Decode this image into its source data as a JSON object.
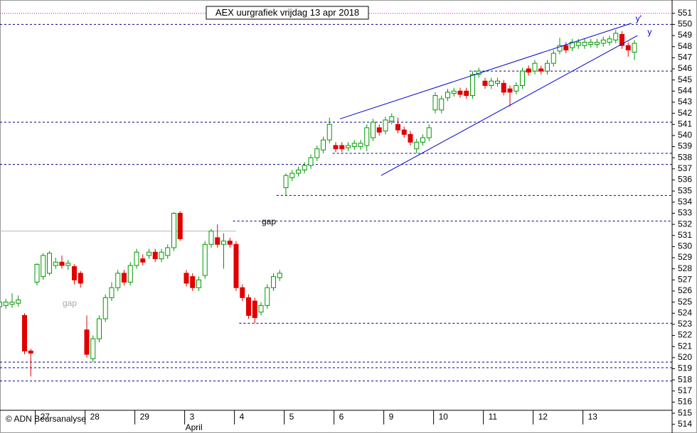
{
  "chart_data": {
    "type": "candlestick",
    "title": "AEX uurgrafiek vrijdag 13 apr 2018",
    "credit": "© ADN Beursanalyse",
    "categories": [
      null,
      null,
      null,
      null,
      null,
      null,
      "27",
      null,
      null,
      null,
      null,
      null,
      null,
      null,
      "28",
      null,
      null,
      null,
      null,
      null,
      null,
      null,
      "29",
      null,
      null,
      null,
      null,
      null,
      null,
      null,
      "3",
      null,
      null,
      null,
      null,
      null,
      null,
      null,
      "4",
      null,
      null,
      null,
      null,
      null,
      null,
      null,
      "5",
      null,
      null,
      null,
      null,
      null,
      null,
      null,
      "6",
      null,
      null,
      null,
      null,
      null,
      null,
      null,
      "9",
      null,
      null,
      null,
      null,
      null,
      null,
      null,
      "10",
      null,
      null,
      null,
      null,
      null,
      null,
      null,
      "11",
      null,
      null,
      null,
      null,
      null,
      null,
      null,
      "12",
      null,
      null,
      null,
      null,
      null,
      null,
      null,
      "13",
      null,
      null,
      null,
      null,
      null,
      null,
      null,
      null
    ],
    "month_label": {
      "index": 30,
      "label": "April"
    },
    "open": [
      524.6,
      524.7,
      524.8,
      524.9,
      523.8,
      520.6,
      526.8,
      527.3,
      527.6,
      528.3,
      528.6,
      528.3,
      528.2,
      527.6,
      522.5,
      519.9,
      521.7,
      523.5,
      525.4,
      526.3,
      527.6,
      526.8,
      528.3,
      528.9,
      529.2,
      529.5,
      528.9,
      529.2,
      529.9,
      533.0,
      527.6,
      527.3,
      526.3,
      527.4,
      530.2,
      530.8,
      530.2,
      530.5,
      530.2,
      526.3,
      525.4,
      525.1,
      524.1,
      524.7,
      526.3,
      527.2,
      535.3,
      536.2,
      536.6,
      536.9,
      537.3,
      538.0,
      538.7,
      539.6,
      539.1,
      539.1,
      538.9,
      539.0,
      539.0,
      539.1,
      539.8,
      540.7,
      540.4,
      541.3,
      541.0,
      540.5,
      540.1,
      538.8,
      539.4,
      539.8,
      542.3,
      542.3,
      543.4,
      543.8,
      544.0,
      544.0,
      543.6,
      545.5,
      544.9,
      544.5,
      544.7,
      544.7,
      544.2,
      544.0,
      544.5,
      546.0,
      545.8,
      546.0,
      545.8,
      546.5,
      547.6,
      548.1,
      547.9,
      548.1,
      548.1,
      548.2,
      548.2,
      548.3,
      548.4,
      548.6,
      549.1,
      548.1,
      547.5
    ],
    "high": [
      525.2,
      525.3,
      525.8,
      525.6,
      524.0,
      520.8,
      528.5,
      529.4,
      529.6,
      529.0,
      529.2,
      528.8,
      528.4,
      527.8,
      523.8,
      522.0,
      523.8,
      525.7,
      526.8,
      527.9,
      527.9,
      528.6,
      529.8,
      529.3,
      529.8,
      529.8,
      529.8,
      530.2,
      533.1,
      533.2,
      527.9,
      527.6,
      527.3,
      530.5,
      531.6,
      532.0,
      531.2,
      530.8,
      530.5,
      526.6,
      525.7,
      525.4,
      525.0,
      526.6,
      527.6,
      527.9,
      536.6,
      536.9,
      537.2,
      537.6,
      538.3,
      539.1,
      539.9,
      541.6,
      539.4,
      539.4,
      539.4,
      539.6,
      539.6,
      541.0,
      541.5,
      541.0,
      541.7,
      542.0,
      541.6,
      540.8,
      540.4,
      539.7,
      540.1,
      541.0,
      543.9,
      543.6,
      544.2,
      544.3,
      544.3,
      544.3,
      545.8,
      546.1,
      545.2,
      545.2,
      545.2,
      545.0,
      544.5,
      544.8,
      546.1,
      546.3,
      546.8,
      546.3,
      546.8,
      547.7,
      548.8,
      548.4,
      548.7,
      548.7,
      548.7,
      548.7,
      548.7,
      548.9,
      549.0,
      549.5,
      549.4,
      548.4,
      548.6
    ],
    "low": [
      524.3,
      524.4,
      524.5,
      524.6,
      520.3,
      518.3,
      526.5,
      527.0,
      527.4,
      528.0,
      528.0,
      527.9,
      526.6,
      526.3,
      520.0,
      519.6,
      521.4,
      523.2,
      525.1,
      526.0,
      526.5,
      526.5,
      528.0,
      528.3,
      528.9,
      528.6,
      528.6,
      528.9,
      529.6,
      530.5,
      526.4,
      526.0,
      526.0,
      527.1,
      529.9,
      529.9,
      528.0,
      529.9,
      526.0,
      525.1,
      523.5,
      523.1,
      523.8,
      524.4,
      526.0,
      526.9,
      534.6,
      535.9,
      536.3,
      536.6,
      537.0,
      537.7,
      538.4,
      539.3,
      538.5,
      538.5,
      538.6,
      538.7,
      538.7,
      538.6,
      539.5,
      540.0,
      540.1,
      541.0,
      540.2,
      539.8,
      539.1,
      538.4,
      539.1,
      539.5,
      542.0,
      542.0,
      543.1,
      543.5,
      543.4,
      543.3,
      543.3,
      545.2,
      544.2,
      544.2,
      544.4,
      543.6,
      542.6,
      543.7,
      544.2,
      545.4,
      545.5,
      545.5,
      545.5,
      546.2,
      547.3,
      547.4,
      547.6,
      547.8,
      547.8,
      547.9,
      547.9,
      548.0,
      548.1,
      548.3,
      547.8,
      547.1,
      546.8
    ],
    "close": [
      525.0,
      525.0,
      525.0,
      525.2,
      520.6,
      520.4,
      528.4,
      529.2,
      529.4,
      528.6,
      528.3,
      528.5,
      527.0,
      526.7,
      520.3,
      521.7,
      523.5,
      525.4,
      526.3,
      527.6,
      526.8,
      528.3,
      529.5,
      528.6,
      529.5,
      528.9,
      529.5,
      529.9,
      533.0,
      530.7,
      526.7,
      526.3,
      527.0,
      530.2,
      531.4,
      530.2,
      530.5,
      530.2,
      526.3,
      525.4,
      523.8,
      523.6,
      524.7,
      526.3,
      527.3,
      527.6,
      536.4,
      536.6,
      536.9,
      537.3,
      538.0,
      538.8,
      539.6,
      541.0,
      538.8,
      538.8,
      539.1,
      539.3,
      539.3,
      540.7,
      541.2,
      540.3,
      541.4,
      541.7,
      540.5,
      540.1,
      539.4,
      539.4,
      539.8,
      540.7,
      543.6,
      543.3,
      543.9,
      544.0,
      543.7,
      543.6,
      545.5,
      545.8,
      544.5,
      544.9,
      544.9,
      543.9,
      543.9,
      544.5,
      545.8,
      545.7,
      546.5,
      545.8,
      546.5,
      547.4,
      548.1,
      547.7,
      548.4,
      548.4,
      548.4,
      548.4,
      548.4,
      548.6,
      548.7,
      549.2,
      548.1,
      547.7,
      548.3
    ],
    "up_color": "#009900",
    "down_color": "#e00000",
    "ylim": [
      513.6,
      552.2
    ],
    "yticks": [
      514,
      515,
      516,
      517,
      518,
      519,
      520,
      521,
      522,
      523,
      524,
      525,
      526,
      527,
      528,
      529,
      530,
      531,
      532,
      533,
      534,
      535,
      536,
      537,
      538,
      539,
      540,
      541,
      542,
      543,
      544,
      545,
      546,
      547,
      548,
      549,
      550,
      551
    ],
    "hlines": [
      {
        "value": 551.0,
        "from": 0,
        "color": "#cc00cc"
      },
      {
        "value": 550.0,
        "from": 0,
        "color": "#000080"
      },
      {
        "value": 545.8,
        "from": 76,
        "color": "#000080"
      },
      {
        "value": 541.2,
        "from": 0,
        "color": "#000080"
      },
      {
        "value": 538.4,
        "from": 54,
        "color": "#000080"
      },
      {
        "value": 537.4,
        "from": 0,
        "color": "#000080"
      },
      {
        "value": 534.6,
        "from": 45,
        "color": "#000080"
      },
      {
        "value": 532.3,
        "from": 38,
        "color": "#000080"
      },
      {
        "value": 531.4,
        "from": 0,
        "to": 38,
        "color": "#bbbbbb"
      },
      {
        "value": 523.1,
        "from": 39,
        "color": "#000080"
      },
      {
        "value": 519.6,
        "from": 0,
        "color": "#000080"
      },
      {
        "value": 519.1,
        "from": 0,
        "color": "#000080"
      },
      {
        "value": 517.9,
        "from": 0,
        "color": "#000080"
      }
    ],
    "trendlines": [
      {
        "label": "y'",
        "x": [
          54.7,
          101.5
        ],
        "y": [
          541.5,
          550.1
        ],
        "color": "#0000cc"
      },
      {
        "label": "y",
        "x": [
          61.3,
          102.5
        ],
        "y": [
          536.4,
          549.0
        ],
        "color": "#0000cc"
      }
    ],
    "annotations": [
      {
        "text": "gap",
        "color": "#000000"
      },
      {
        "text": "gap",
        "color": "#aaaaaa"
      }
    ]
  }
}
